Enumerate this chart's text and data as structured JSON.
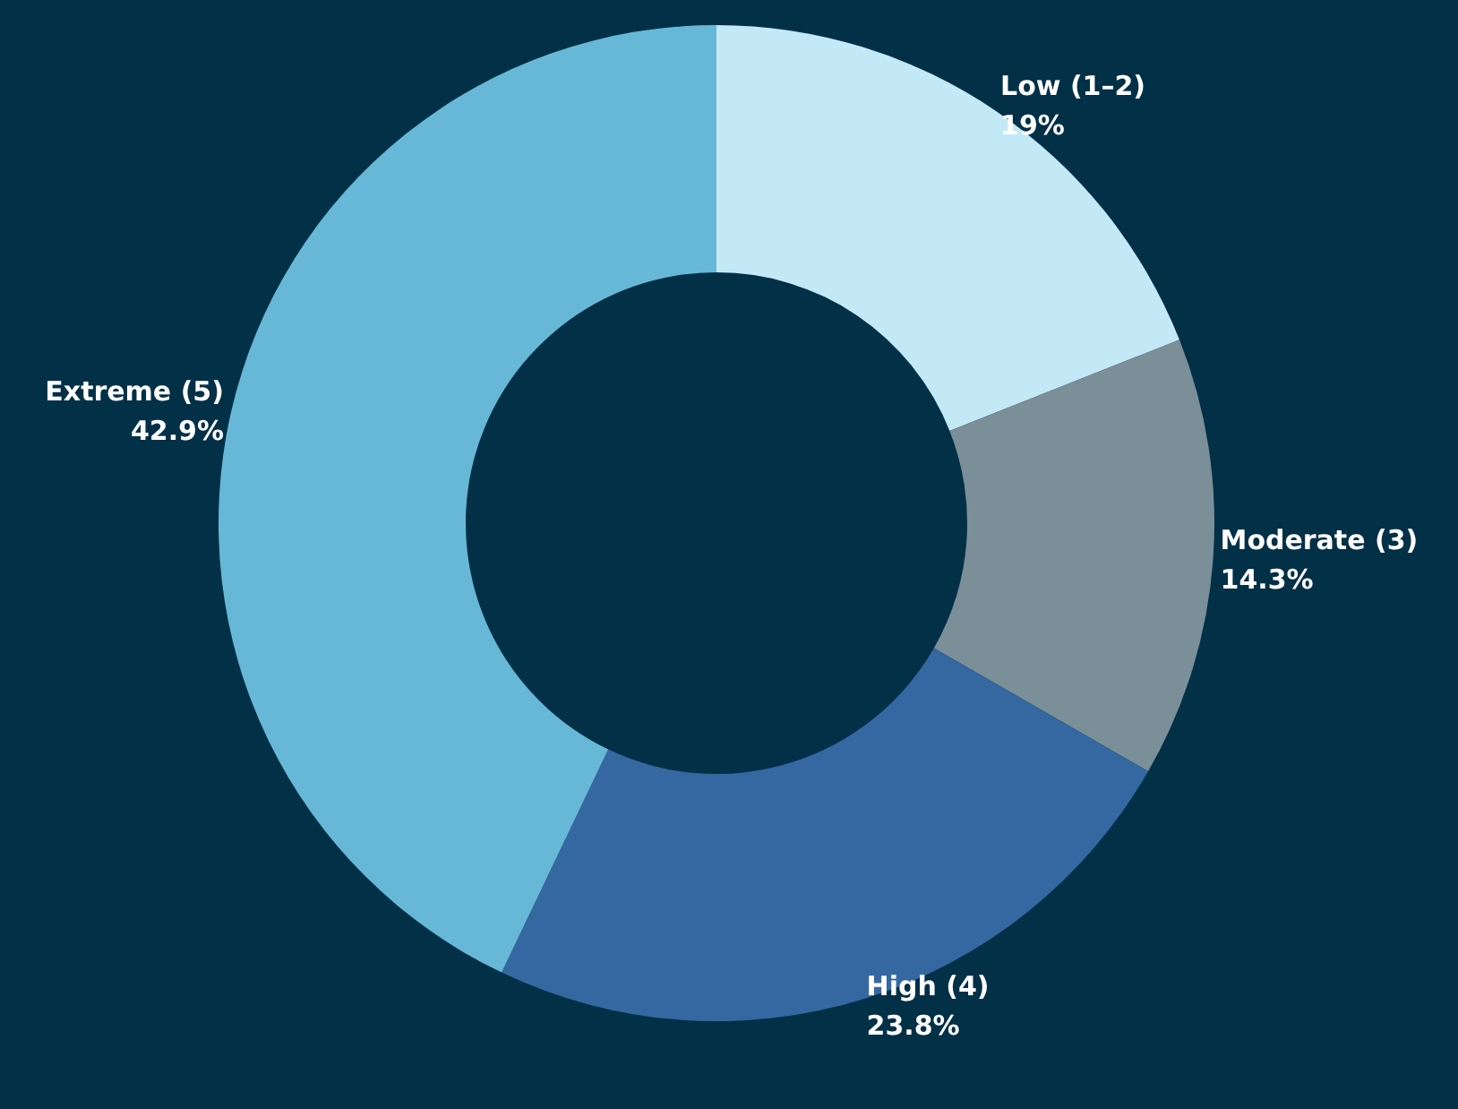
{
  "chart_data": {
    "type": "donut",
    "categories": [
      "Low (1–2)",
      "Moderate (3)",
      "High (4)",
      "Extreme (5)"
    ],
    "values": [
      19,
      14.3,
      23.8,
      42.9
    ],
    "colors": [
      "#c3e9f7",
      "#7b8f99",
      "#3568a0",
      "#67b8d6"
    ],
    "value_labels": [
      "19%",
      "14.3%",
      "23.8%",
      "42.9%"
    ],
    "legend": false
  }
}
